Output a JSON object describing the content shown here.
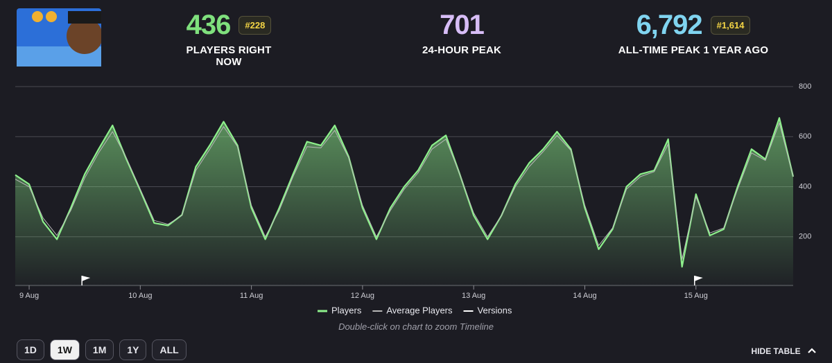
{
  "stats": {
    "players_now": {
      "value": "436",
      "rank": "#228",
      "label": "PLAYERS RIGHT NOW"
    },
    "peak_24h": {
      "value": "701",
      "label": "24-HOUR PEAK"
    },
    "all_time": {
      "value": "6,792",
      "rank": "#1,614",
      "label": "ALL-TIME PEAK 1 YEAR AGO"
    }
  },
  "chart_data": {
    "type": "line",
    "series": [
      {
        "name": "Players",
        "color": "#8ef08c",
        "values": [
          447,
          410,
          260,
          190,
          315,
          450,
          550,
          645,
          510,
          385,
          255,
          245,
          287,
          480,
          565,
          660,
          565,
          315,
          190,
          315,
          450,
          580,
          565,
          645,
          520,
          315,
          190,
          315,
          400,
          465,
          565,
          605,
          450,
          285,
          190,
          285,
          410,
          495,
          550,
          620,
          550,
          315,
          150,
          230,
          400,
          450,
          465,
          590,
          80,
          370,
          205,
          230,
          400,
          550,
          510,
          675,
          440
        ]
      },
      {
        "name": "Average Players",
        "color": "#b8b8b8",
        "values": [
          430,
          400,
          275,
          205,
          305,
          435,
          535,
          620,
          515,
          390,
          265,
          250,
          285,
          465,
          550,
          640,
          560,
          325,
          200,
          305,
          440,
          560,
          555,
          625,
          515,
          325,
          200,
          305,
          390,
          455,
          550,
          590,
          450,
          295,
          200,
          285,
          400,
          480,
          540,
          605,
          545,
          325,
          165,
          235,
          390,
          440,
          460,
          570,
          110,
          360,
          215,
          235,
          390,
          535,
          505,
          655,
          440
        ]
      },
      {
        "name": "Versions",
        "color": "#ffffff",
        "x": [
          4.8,
          48.9
        ]
      }
    ],
    "xlim": [
      0,
      56
    ],
    "xticks": [
      {
        "value": 1,
        "label": "9 Aug"
      },
      {
        "value": 9,
        "label": "10 Aug"
      },
      {
        "value": 17,
        "label": "11 Aug"
      },
      {
        "value": 25,
        "label": "12 Aug"
      },
      {
        "value": 33,
        "label": "13 Aug"
      },
      {
        "value": 41,
        "label": "14 Aug"
      },
      {
        "value": 49,
        "label": "15 Aug"
      }
    ],
    "ylim": [
      0,
      800
    ],
    "yticks": [
      200,
      400,
      600,
      800
    ],
    "grid": true,
    "legend": "bottom"
  },
  "hint": "Double-click on chart to zoom Timeline",
  "ranges": [
    "1D",
    "1W",
    "1M",
    "1Y",
    "ALL"
  ],
  "active_range": "1W",
  "hide_table": "HIDE TABLE"
}
